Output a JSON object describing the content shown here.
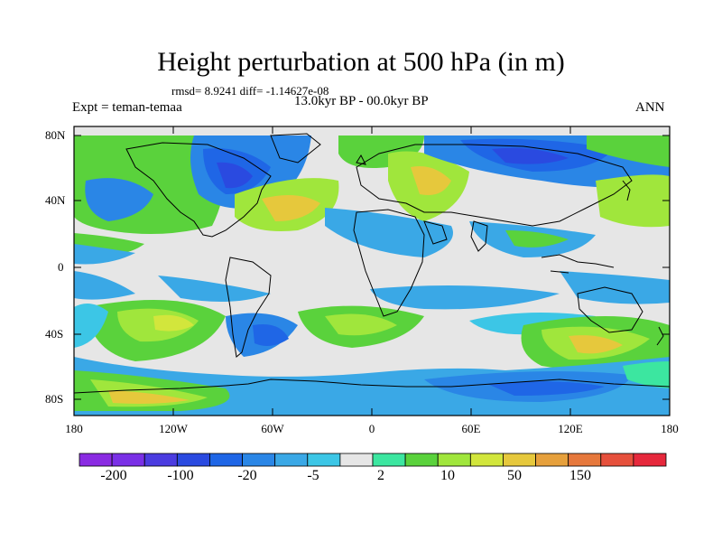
{
  "title": "Height perturbation at 500 hPa (in m)",
  "stats": "rmsd= 8.9241 diff= -1.14627e-08",
  "experiment": "Expt = teman-temaa",
  "period": "13.0kyr BP - 00.0kyr BP",
  "season": "ANN",
  "y_axis_labels": [
    "80N",
    "40N",
    "0",
    "40S",
    "80S"
  ],
  "x_axis_labels": [
    "180",
    "120W",
    "60W",
    "0",
    "60E",
    "120E",
    "180"
  ],
  "colorbar": {
    "labels": [
      "-200",
      "-100",
      "-20",
      "-5",
      "2",
      "10",
      "50",
      "150"
    ],
    "colors": [
      "#8a2be2",
      "#7a30e6",
      "#4b3ce0",
      "#2a4ae0",
      "#1f66e6",
      "#2a86e6",
      "#3aa8e6",
      "#3cc6e6",
      "#e6e6e6",
      "#3ce6a0",
      "#5ad23c",
      "#a0e63c",
      "#d2e63c",
      "#e6c83c",
      "#e6a03c",
      "#e6783c",
      "#e6503c",
      "#e6283c"
    ]
  },
  "map": {
    "background_color": "#e6e6e6",
    "lon_range": [
      -180,
      180
    ],
    "lat_range": [
      -90,
      90
    ]
  }
}
